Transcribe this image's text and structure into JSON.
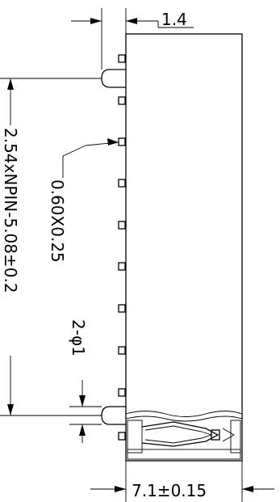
{
  "dimensions": {
    "top_offset": "1.4",
    "pitch_length": "2.54xNPIN-5.08±0.2",
    "pin_section": "0.60X0.25",
    "hole_diameter": "2-φ1",
    "body_width": "7.1±0.15"
  },
  "pin_count_visible": 10,
  "ink_color": "#000000"
}
